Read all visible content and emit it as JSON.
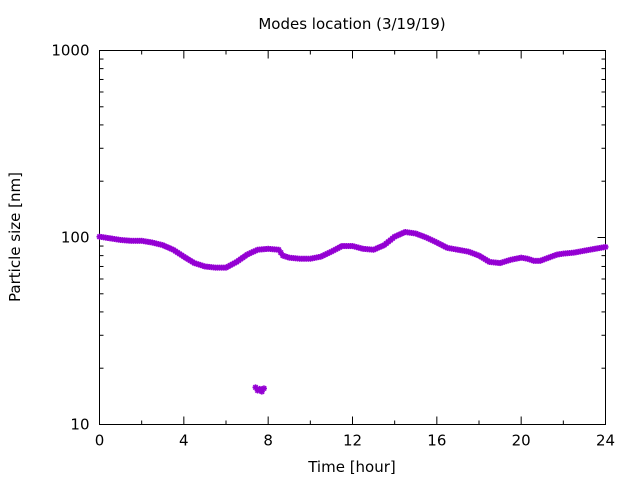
{
  "chart_data": {
    "type": "scatter",
    "title": "Modes location (3/19/19)",
    "xlabel": "Time [hour]",
    "ylabel": "Particle size [nm]",
    "xlim": [
      0,
      24
    ],
    "ylim": [
      10,
      1000
    ],
    "yscale": "log",
    "x_ticks": [
      0,
      4,
      8,
      12,
      16,
      20,
      24
    ],
    "y_ticks": [
      10,
      100,
      1000
    ],
    "x_tick_labels": [
      "0",
      "4",
      "8",
      "12",
      "16",
      "20",
      "24"
    ],
    "y_tick_labels": [
      "10",
      "100",
      "1000"
    ],
    "grid": false,
    "legend": "none",
    "marker_color": "#9400d3",
    "series": [
      {
        "mode": 1,
        "x": [
          0,
          0.5,
          1,
          1.5,
          2,
          2.5,
          3,
          3.5,
          4,
          4.5,
          5,
          5.5,
          6,
          6.5,
          7,
          7.5,
          8,
          8.5,
          8.7,
          9,
          9.5,
          10,
          10.5,
          11,
          11.5,
          12,
          12.5,
          13,
          13.5,
          14,
          14.5,
          15,
          15.5,
          16,
          16.5,
          17,
          17.5,
          18,
          18.5,
          19,
          19.5,
          20,
          20.3,
          20.6,
          20.9,
          21.3,
          21.7,
          22,
          22.5,
          23,
          23.5,
          24
        ],
        "y": [
          101,
          99,
          97,
          96,
          96,
          94,
          91,
          86,
          79,
          73,
          70,
          69,
          69,
          74,
          81,
          86,
          87,
          86,
          80,
          78,
          77,
          77,
          79,
          84,
          90,
          90,
          87,
          86,
          91,
          101,
          107,
          105,
          100,
          94,
          88,
          86,
          84,
          80,
          74,
          73,
          76,
          78,
          77,
          75,
          75,
          78,
          81,
          82,
          83,
          85,
          87,
          89
        ]
      },
      {
        "mode": 2,
        "x": [
          7.4,
          7.5,
          7.6,
          7.7,
          7.8
        ],
        "y": [
          15.8,
          15.2,
          15.5,
          15.0,
          15.6
        ]
      }
    ]
  }
}
